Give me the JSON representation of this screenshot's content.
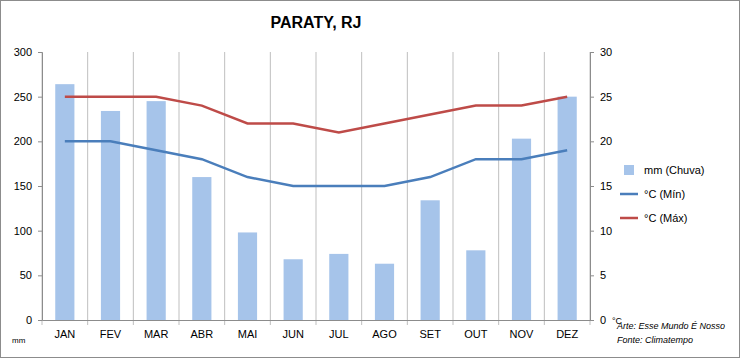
{
  "chart_data": {
    "type": "bar",
    "title": "PARATY, RJ",
    "categories": [
      "JAN",
      "FEV",
      "MAR",
      "ABR",
      "MAI",
      "JUN",
      "JUL",
      "AGO",
      "SET",
      "OUT",
      "NOV",
      "DEZ"
    ],
    "series": [
      {
        "name": "mm (Chuva)",
        "type": "bar",
        "color": "#a6c4ea",
        "values": [
          264,
          234,
          245,
          160,
          98,
          68,
          74,
          63,
          134,
          78,
          203,
          250
        ]
      },
      {
        "name": "°C (Mín)",
        "type": "line",
        "axis": "y2",
        "color": "#4a7ebb",
        "values": [
          20,
          20,
          19,
          18,
          16,
          15,
          15,
          15,
          16,
          18,
          18,
          19
        ]
      },
      {
        "name": "°C (Máx)",
        "type": "line",
        "axis": "y2",
        "color": "#be4b48",
        "values": [
          25,
          25,
          25,
          24,
          22,
          22,
          21,
          22,
          23,
          24,
          24,
          25
        ]
      }
    ],
    "ylabel": "mm",
    "y2label": "°C",
    "ylim": [
      0,
      300
    ],
    "yticks": [
      0,
      50,
      100,
      150,
      200,
      250,
      300
    ],
    "y2lim": [
      0,
      30
    ],
    "y2ticks": [
      0,
      5,
      10,
      15,
      20,
      25,
      30
    ],
    "grid": true,
    "legend": "right",
    "annotations": [
      "Arte: Esse Mundo É Nosso",
      "Fonte: Climatempo"
    ]
  }
}
